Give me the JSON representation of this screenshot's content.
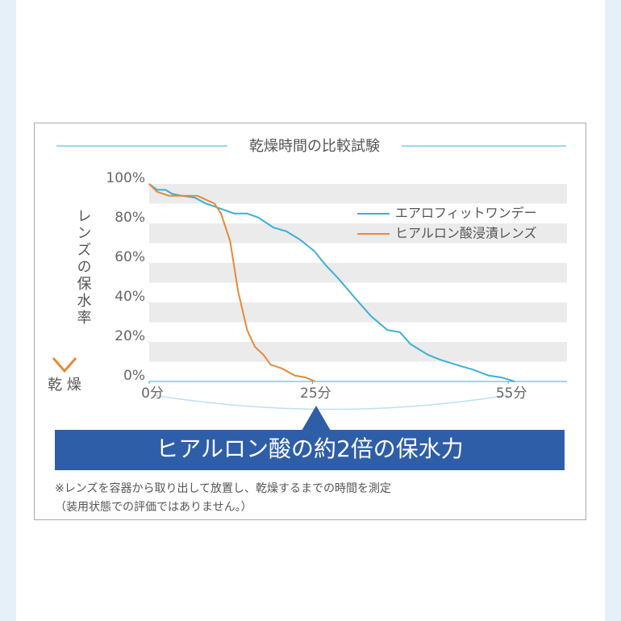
{
  "chart_data": {
    "type": "line",
    "title": "乾燥時間の比較試験",
    "ylabel": "レンズの保水率",
    "annotations": [
      "乾 燥",
      "ヒアルロン酸の約2倍の保水力",
      "※レンズを容器から取り出して放置し、乾燥するまでの時間を測定",
      "（装用状態での評価ではありません。）"
    ],
    "xlim": [
      0,
      64
    ],
    "xticks": [
      {
        "value": 0,
        "label": "0分"
      },
      {
        "value": 25,
        "label": "25分"
      },
      {
        "value": 55,
        "label": "55分"
      }
    ],
    "ylim": [
      0,
      100
    ],
    "yticks": [
      {
        "value": 0,
        "label": "0%"
      },
      {
        "value": 20,
        "label": "20%"
      },
      {
        "value": 40,
        "label": "40%"
      },
      {
        "value": 60,
        "label": "60%"
      },
      {
        "value": 80,
        "label": "80%"
      },
      {
        "value": 100,
        "label": "100%"
      }
    ],
    "grid": "bands",
    "series": [
      {
        "name": "エアロフィットワンデー",
        "color": "#3bb0d8",
        "x": [
          0,
          1.2,
          2.5,
          3.5,
          5,
          7,
          8.7,
          10.5,
          13,
          15,
          16.7,
          19,
          21,
          23,
          25.3,
          27,
          29,
          31.6,
          34,
          36.5,
          38.4,
          40,
          42.7,
          44.6,
          47,
          49.6,
          52,
          54,
          56
        ],
        "values": [
          100,
          97,
          97,
          95,
          94,
          93,
          90,
          88,
          85,
          85,
          83,
          78,
          76,
          72,
          66,
          59,
          52,
          42,
          33,
          26,
          25,
          19,
          13.5,
          11,
          8.5,
          6,
          3,
          2,
          0
        ]
      },
      {
        "name": "ヒアルロン酸浸漬レンズ",
        "color": "#e8883a",
        "x": [
          0,
          1.2,
          3,
          7.4,
          8.7,
          10,
          11,
          12.4,
          13.6,
          15,
          16.2,
          17.5,
          18.6,
          20.4,
          22.3,
          24,
          25.4
        ],
        "values": [
          100,
          96,
          94,
          94,
          92,
          90,
          85,
          71,
          46,
          26,
          17.5,
          13.5,
          8.5,
          6.5,
          3,
          2,
          0
        ]
      }
    ]
  }
}
